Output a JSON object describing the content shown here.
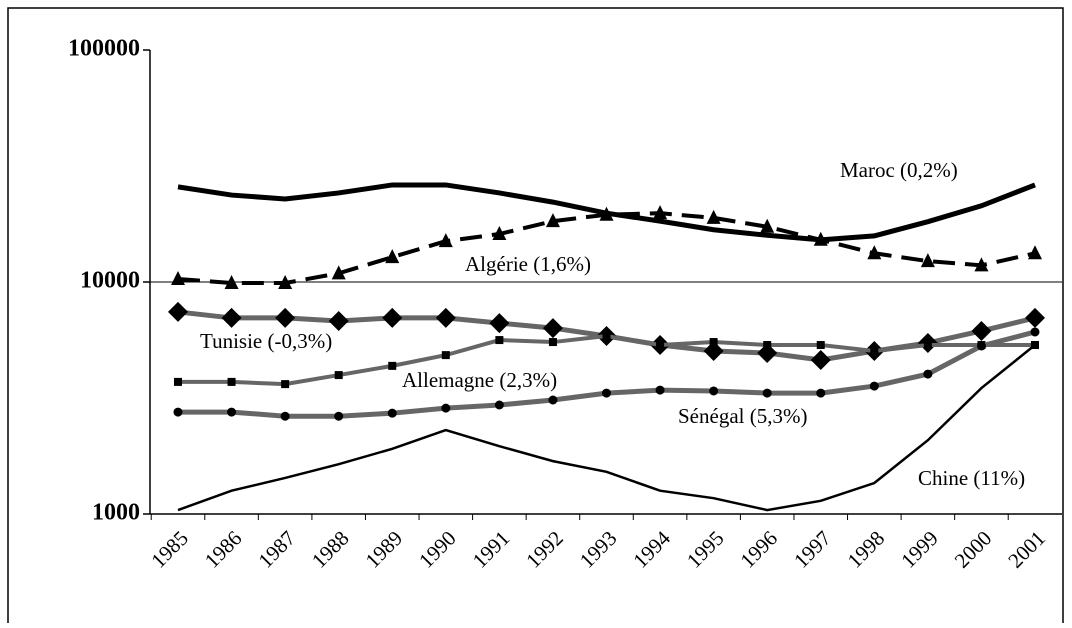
{
  "chart_data": {
    "type": "line",
    "log_scale": true,
    "grid": true,
    "categories": [
      "1985",
      "1986",
      "1987",
      "1988",
      "1989",
      "1990",
      "1991",
      "1992",
      "1993",
      "1994",
      "1995",
      "1996",
      "1997",
      "1998",
      "1999",
      "2000",
      "2001"
    ],
    "ylim": [
      1000,
      100000
    ],
    "yticks": [
      1000,
      10000,
      100000
    ],
    "series": [
      {
        "name": "Maroc (0,2%)",
        "color": "#000000",
        "width": 5,
        "dashed": false,
        "marker": "none",
        "values": [
          25700,
          23700,
          22800,
          24200,
          26200,
          26200,
          24200,
          22100,
          19800,
          18300,
          16800,
          15900,
          15200,
          15800,
          18200,
          21300,
          26200
        ]
      },
      {
        "name": "Algérie (1,6%)",
        "color": "#000000",
        "width": 4,
        "dashed": true,
        "marker": "triangle",
        "values": [
          10300,
          9900,
          9900,
          10900,
          12800,
          15000,
          16100,
          18300,
          19500,
          19800,
          18900,
          17300,
          15200,
          13300,
          12300,
          11800,
          13300
        ]
      },
      {
        "name": "Tunisie (-0,3%)",
        "color": "#666666",
        "width": 5,
        "dashed": false,
        "marker": "diamond",
        "values": [
          7430,
          7000,
          7000,
          6790,
          7000,
          7000,
          6650,
          6330,
          5850,
          5350,
          5040,
          4940,
          4610,
          5040,
          5460,
          6150,
          7000
        ]
      },
      {
        "name": "Allemagne (2,3%)",
        "color": "#666666",
        "width": 4,
        "dashed": false,
        "marker": "square",
        "values": [
          3710,
          3710,
          3630,
          3970,
          4350,
          4840,
          5620,
          5510,
          5850,
          5350,
          5510,
          5350,
          5350,
          5040,
          5350,
          5350,
          5350
        ]
      },
      {
        "name": "Sénégal (5,3%)",
        "color": "#666666",
        "width": 5,
        "dashed": false,
        "marker": "circle",
        "values": [
          2750,
          2750,
          2640,
          2640,
          2720,
          2860,
          2950,
          3100,
          3320,
          3420,
          3390,
          3320,
          3320,
          3560,
          4010,
          5300,
          6090
        ]
      },
      {
        "name": "Chine (11%)",
        "color": "#000000",
        "width": 2.5,
        "dashed": false,
        "marker": "none",
        "values": [
          1040,
          1260,
          1430,
          1640,
          1910,
          2300,
          1960,
          1690,
          1520,
          1260,
          1170,
          1040,
          1140,
          1360,
          2080,
          3490,
          5350
        ]
      }
    ]
  }
}
